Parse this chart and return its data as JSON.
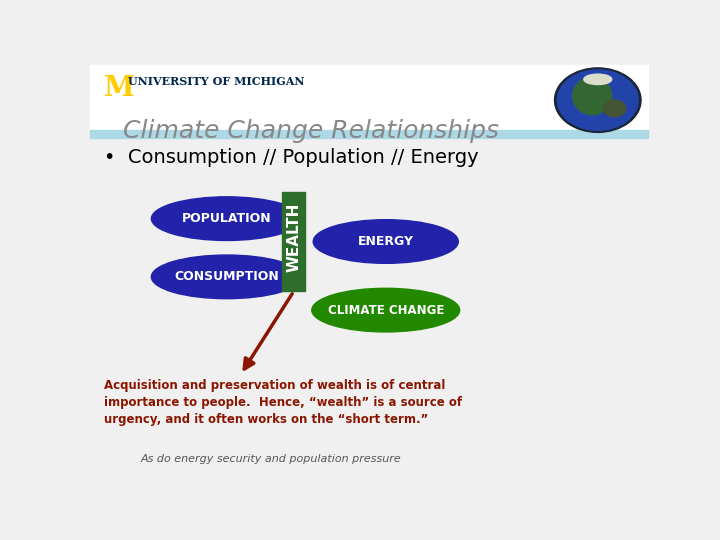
{
  "title": "Climate Change Relationships",
  "subtitle": "Consumption // Population // Energy",
  "bg_color": "#f0f0f0",
  "blue_bar_color": "#add8e6",
  "title_color": "#888888",
  "ellipse_blue": "#2222aa",
  "ellipse_green": "#228800",
  "wealth_bar_color": "#2d6e2d",
  "wealth_text_color": "#ffffff",
  "ellipse_text_color": "#ffffff",
  "arrow_color": "#8b1500",
  "annotation_color": "#8b1500",
  "sub_annotation_color": "#555555",
  "um_m_color": "#FFCC00",
  "um_text_color": "#00274C",
  "annotation_line1": "Acquisition and preservation of wealth is of central",
  "annotation_line2": "importance to people.  Hence, “wealth” is a source of",
  "annotation_line3": "urgency, and it often works on the “short term.”",
  "annotation_sub": "As do energy security and population pressure"
}
